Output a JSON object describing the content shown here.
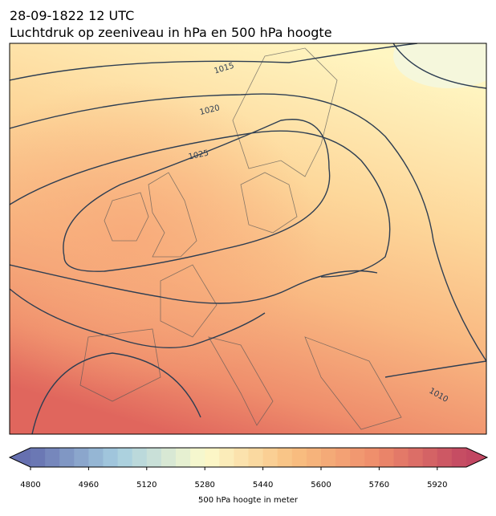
{
  "header": {
    "date": "28-09-1822 12 UTC",
    "title": "Luchtdruk op zeeniveau in hPa en 500 hPa hoogte"
  },
  "isobar_labels": [
    "1015",
    "1020",
    "1025",
    "1010"
  ],
  "colorbar": {
    "label": "500 hPa hoogte in meter",
    "lim": [
      4800,
      6000
    ],
    "ticks": [
      4800,
      4960,
      5120,
      5280,
      5440,
      5600,
      5760,
      5920
    ],
    "colormap": [
      "#6670b0",
      "#a5cde0",
      "#fcfbcc",
      "#f9c081",
      "#ee8a6a",
      "#c24762"
    ]
  }
}
